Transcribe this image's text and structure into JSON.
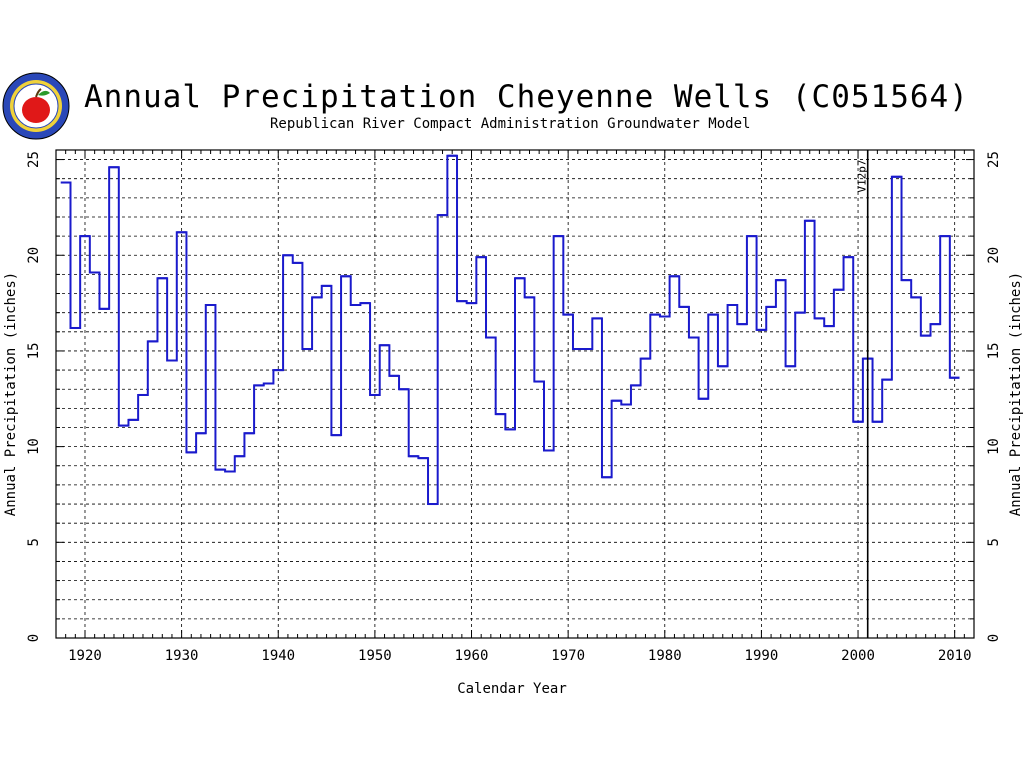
{
  "header": {
    "title": "Annual Precipitation Cheyenne Wells (C051564)",
    "subtitle": "Republican River Compact Administration Groundwater Model",
    "logo_icon": "state-seal-apple-logo"
  },
  "colors": {
    "series": "#1a1acc",
    "grid": "#000000",
    "axis": "#000000"
  },
  "chart_data": {
    "type": "line",
    "step": true,
    "title": "Annual Precipitation Cheyenne Wells (C051564)",
    "subtitle": "Republican River Compact Administration Groundwater Model",
    "xlabel": "Calendar Year",
    "ylabel": "Annual Precipitation (inches)",
    "ylabel_right": "Annual Precipitation (inches)",
    "xlim": [
      1917,
      2012
    ],
    "ylim": [
      0,
      25.5
    ],
    "x_ticks": [
      1920,
      1930,
      1940,
      1950,
      1960,
      1970,
      1980,
      1990,
      2000,
      2010
    ],
    "x_tick_labels": [
      "1920",
      "1930",
      "1940",
      "1950",
      "1960",
      "1970",
      "1980",
      "1990",
      "2000",
      "2010"
    ],
    "y_ticks": [
      0,
      5,
      10,
      15,
      20,
      25
    ],
    "y_tick_labels": [
      "0",
      "5",
      "10",
      "15",
      "20",
      "25"
    ],
    "grid": true,
    "annotations": [
      {
        "text": "V12p7",
        "x": 2001
      }
    ],
    "series": [
      {
        "x": [
          1918,
          1919,
          1920,
          1921,
          1922,
          1923,
          1924,
          1925,
          1926,
          1927,
          1928,
          1929,
          1930,
          1931,
          1932,
          1933,
          1934,
          1935,
          1936,
          1937,
          1938,
          1939,
          1940,
          1941,
          1942,
          1943,
          1944,
          1945,
          1946,
          1947,
          1948,
          1949,
          1950,
          1951,
          1952,
          1953,
          1954,
          1955,
          1956,
          1957,
          1958,
          1959,
          1960,
          1961,
          1962,
          1963,
          1964,
          1965,
          1966,
          1967,
          1968,
          1969,
          1970,
          1971,
          1972,
          1973,
          1974,
          1975,
          1976,
          1977,
          1978,
          1979,
          1980,
          1981,
          1982,
          1983,
          1984,
          1985,
          1986,
          1987,
          1988,
          1989,
          1990,
          1991,
          1992,
          1993,
          1994,
          1995,
          1996,
          1997,
          1998,
          1999,
          2000,
          2001,
          2002,
          2003,
          2004,
          2005,
          2006,
          2007,
          2008,
          2009,
          2010
        ],
        "y": [
          23.8,
          16.2,
          21.0,
          19.1,
          17.2,
          24.6,
          11.1,
          11.4,
          12.7,
          15.5,
          18.8,
          14.5,
          21.2,
          9.7,
          10.7,
          17.4,
          8.8,
          8.7,
          9.5,
          10.7,
          13.2,
          13.3,
          14.0,
          20.0,
          19.6,
          15.1,
          17.8,
          18.4,
          10.6,
          18.9,
          17.4,
          17.5,
          12.7,
          15.3,
          13.7,
          13.0,
          9.5,
          9.4,
          7.0,
          22.1,
          25.2,
          17.6,
          17.5,
          19.9,
          15.7,
          11.7,
          10.9,
          18.8,
          17.8,
          13.4,
          9.8,
          21.0,
          16.9,
          15.1,
          15.1,
          16.7,
          8.4,
          12.4,
          12.2,
          13.2,
          14.6,
          16.9,
          16.8,
          18.9,
          17.3,
          15.7,
          12.5,
          16.9,
          14.2,
          17.4,
          16.4,
          21.0,
          16.1,
          17.3,
          18.7,
          14.2,
          17.0,
          21.8,
          16.7,
          16.3,
          18.2,
          19.9,
          11.3,
          14.6,
          11.3,
          13.5,
          24.1,
          18.7,
          17.8,
          15.8,
          16.4,
          21.0,
          13.6
        ]
      }
    ]
  }
}
